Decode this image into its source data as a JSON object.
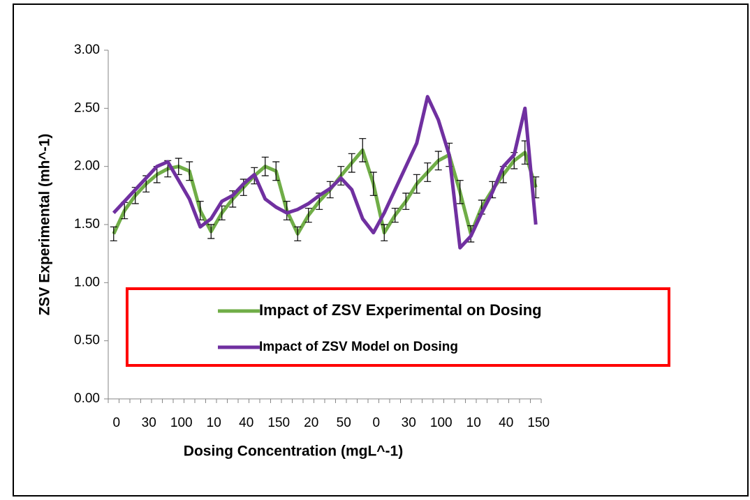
{
  "chart_data": {
    "type": "line",
    "x_label": "Dosing Concentration (mgL^-1)",
    "y_label": "ZSV Experimental (mh^-1)",
    "categories": [
      "0",
      null,
      null,
      "30",
      null,
      null,
      "100",
      null,
      null,
      "10",
      null,
      null,
      "40",
      null,
      null,
      "150",
      null,
      null,
      "20",
      null,
      null,
      "50",
      null,
      null,
      "0",
      null,
      null,
      "30",
      null,
      null,
      "100",
      null,
      null,
      "10",
      null,
      null,
      "40",
      null,
      null,
      "150"
    ],
    "series": [
      {
        "name": "Impact of ZSV Experimental on Dosing",
        "color": "#70ad47",
        "values": [
          1.42,
          1.62,
          1.75,
          1.85,
          1.93,
          1.98,
          2.0,
          1.96,
          1.62,
          1.44,
          1.6,
          1.72,
          1.82,
          1.92,
          2.0,
          1.96,
          1.62,
          1.42,
          1.58,
          1.7,
          1.8,
          1.92,
          2.03,
          2.14,
          1.85,
          1.43,
          1.58,
          1.7,
          1.85,
          1.95,
          2.05,
          2.1,
          1.78,
          1.42,
          1.65,
          1.8,
          1.93,
          2.05,
          2.12,
          1.82
        ],
        "errors": [
          0.06,
          0.07,
          0.07,
          0.07,
          0.07,
          0.07,
          0.07,
          0.08,
          0.08,
          0.06,
          0.06,
          0.07,
          0.07,
          0.07,
          0.08,
          0.08,
          0.08,
          0.06,
          0.06,
          0.07,
          0.07,
          0.08,
          0.08,
          0.1,
          0.1,
          0.07,
          0.06,
          0.07,
          0.08,
          0.08,
          0.08,
          0.1,
          0.1,
          0.07,
          0.06,
          0.07,
          0.07,
          0.07,
          0.1,
          0.09
        ]
      },
      {
        "name": "Impact of ZSV Model on Dosing",
        "color": "#7030a0",
        "values": [
          1.6,
          1.7,
          1.8,
          1.9,
          2.0,
          2.04,
          1.88,
          1.72,
          1.48,
          1.55,
          1.7,
          1.75,
          1.85,
          1.93,
          1.72,
          1.65,
          1.6,
          1.63,
          1.68,
          1.75,
          1.81,
          1.9,
          1.8,
          1.55,
          1.43,
          1.6,
          1.8,
          2.0,
          2.2,
          2.6,
          2.4,
          2.1,
          1.3,
          1.4,
          1.6,
          1.78,
          2.0,
          2.1,
          2.5,
          1.5
        ]
      }
    ],
    "ylim": [
      0,
      3
    ],
    "yticks": [
      {
        "value": 0,
        "label": "0.00"
      },
      {
        "value": 0.5,
        "label": "0.50"
      },
      {
        "value": 1,
        "label": "1.00"
      },
      {
        "value": 1.5,
        "label": "1.50"
      },
      {
        "value": 2,
        "label": "2.00"
      },
      {
        "value": 2.5,
        "label": "2.50"
      },
      {
        "value": 3,
        "label": "3.00"
      }
    ],
    "grid": false,
    "legend": "inside"
  }
}
